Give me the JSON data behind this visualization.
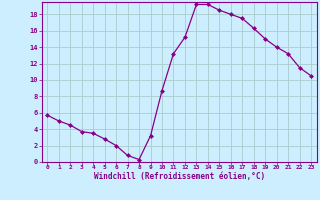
{
  "x": [
    0,
    1,
    2,
    3,
    4,
    5,
    6,
    7,
    8,
    9,
    10,
    11,
    12,
    13,
    14,
    15,
    16,
    17,
    18,
    19,
    20,
    21,
    22,
    23
  ],
  "y": [
    5.7,
    5.0,
    4.5,
    3.7,
    3.5,
    2.8,
    2.0,
    0.8,
    0.3,
    3.2,
    8.7,
    13.2,
    15.2,
    19.2,
    19.2,
    18.5,
    18.0,
    17.5,
    16.3,
    15.0,
    14.0,
    13.2,
    11.5,
    10.5
  ],
  "line_color": "#880088",
  "marker": "D",
  "marker_size": 2.0,
  "background_color": "#cceeff",
  "grid_color": "#aacccc",
  "xlabel": "Windchill (Refroidissement éolien,°C)",
  "xlabel_color": "#880088",
  "tick_color": "#880088",
  "spine_color": "#880088",
  "xlim": [
    -0.5,
    23.5
  ],
  "ylim": [
    0,
    19.5
  ],
  "xticks": [
    0,
    1,
    2,
    3,
    4,
    5,
    6,
    7,
    8,
    9,
    10,
    11,
    12,
    13,
    14,
    15,
    16,
    17,
    18,
    19,
    20,
    21,
    22,
    23
  ],
  "yticks": [
    0,
    2,
    4,
    6,
    8,
    10,
    12,
    14,
    16,
    18
  ],
  "ytick_labels": [
    "0",
    "2",
    "4",
    "6",
    "8",
    "10",
    "12",
    "14",
    "16",
    "18"
  ]
}
